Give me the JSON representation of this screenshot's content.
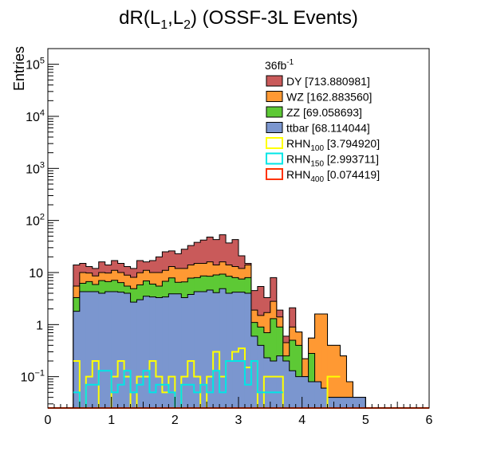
{
  "chart_data": {
    "type": "histogram",
    "title": "dR(L",
    "title_sub1": "1",
    "title_mid": ",L",
    "title_sub2": "2",
    "title_end": ") (OSSF-3L Events)",
    "ylabel": "Entries",
    "xlabel": "",
    "xlim": [
      0,
      6
    ],
    "ylim": [
      0.025,
      200000
    ],
    "yscale": "log",
    "bin_width": 0.1,
    "x_ticks": [
      "0",
      "1",
      "2",
      "3",
      "4",
      "5",
      "6"
    ],
    "y_ticks": [
      {
        "value": 0.1,
        "label": "10",
        "sup": "−1"
      },
      {
        "value": 1,
        "label": "1",
        "sup": ""
      },
      {
        "value": 10,
        "label": "10",
        "sup": ""
      },
      {
        "value": 100,
        "label": "10",
        "sup": "2"
      },
      {
        "value": 1000,
        "label": "10",
        "sup": "3"
      },
      {
        "value": 10000,
        "label": "10",
        "sup": "4"
      },
      {
        "value": 100000,
        "label": "10",
        "sup": "5"
      }
    ],
    "lumi_label": "36fb",
    "lumi_sup": "-1",
    "bin_edges_start": 0.4,
    "stack": [
      {
        "name": "ttbar",
        "label": "ttbar [68.114044]",
        "color": "#7b96cf",
        "cum": [
          1.8,
          4.3,
          4.3,
          4.3,
          4.0,
          4.3,
          4.3,
          4.2,
          4.0,
          2.7,
          3.0,
          3.5,
          3.4,
          3.3,
          3.4,
          3.9,
          3.9,
          3.3,
          3.8,
          4.3,
          4.3,
          4.6,
          4.1,
          4.9,
          4.0,
          4.2,
          4.2,
          4.0,
          0.6,
          0.4,
          0.23,
          0.2,
          0.25,
          0.2,
          0.13,
          0.1,
          0.1,
          0.08,
          0.08,
          0.06,
          0.04,
          0.04,
          0.04,
          0.04,
          0.04,
          0.04
        ]
      },
      {
        "name": "ZZ",
        "label": "ZZ [69.058693]",
        "color": "#5dc935",
        "cum": [
          3.3,
          6.2,
          6.7,
          5.9,
          7.0,
          6.7,
          7.1,
          6.4,
          5.5,
          4.9,
          5.8,
          6.9,
          6.0,
          5.5,
          6.8,
          7.9,
          6.5,
          6.6,
          7.8,
          8.0,
          8.6,
          8.5,
          9.0,
          9.3,
          8.5,
          8.0,
          7.5,
          8.0,
          1.1,
          0.9,
          0.7,
          1.3,
          0.9,
          0.25,
          0.5,
          0.4,
          0.1,
          0.28,
          0.08,
          0.06,
          0.04,
          0.04,
          0.04,
          0.04,
          0.04,
          0.04
        ]
      },
      {
        "name": "WZ",
        "label": "WZ [162.883560]",
        "color": "#ff9933",
        "cum": [
          5.5,
          10,
          9.8,
          8.6,
          10,
          9.8,
          11,
          10,
          8.9,
          8.1,
          9.9,
          11,
          10,
          10,
          11,
          13,
          12,
          12,
          14,
          15,
          15,
          16,
          14,
          16,
          14,
          13,
          12,
          14,
          1.9,
          1.5,
          1.7,
          2.8,
          1.4,
          0.45,
          0.9,
          0.72,
          0.22,
          0.55,
          1.6,
          1.6,
          0.4,
          0.4,
          0.25,
          0.08,
          0.04,
          0.04
        ]
      },
      {
        "name": "DY",
        "label": "DY [713.880981]",
        "color": "#c95a5a",
        "cum": [
          14,
          15,
          13,
          12,
          16,
          14,
          17,
          15,
          13,
          12,
          17,
          16,
          17,
          20,
          25,
          26,
          23,
          28,
          33,
          38,
          42,
          48,
          43,
          53,
          37,
          43,
          21,
          15,
          4.5,
          5.4,
          3.3,
          8.0,
          1.9,
          0.6,
          2.1,
          0.72,
          0.22,
          0.55,
          1.6,
          1.6,
          0.4,
          0.4,
          0.25,
          0.08,
          0.04,
          0.04
        ]
      }
    ],
    "lines": [
      {
        "name": "RHN100",
        "label": "RHN",
        "sub": "100",
        "value": " [3.794920]",
        "color": "#ffff00",
        "steps": [
          [
            0.4,
            0.5,
            0.2
          ],
          [
            0.5,
            0.6,
            0
          ],
          [
            0.6,
            0.7,
            0.1
          ],
          [
            0.7,
            0.8,
            0.2
          ],
          [
            0.8,
            1.0,
            0
          ],
          [
            1.0,
            1.1,
            0.1
          ],
          [
            1.1,
            1.2,
            0.2
          ],
          [
            1.2,
            1.3,
            0.1
          ],
          [
            1.3,
            1.4,
            0
          ],
          [
            1.4,
            1.5,
            0.1
          ],
          [
            1.5,
            1.6,
            0.1
          ],
          [
            1.6,
            1.7,
            0.2
          ],
          [
            1.7,
            1.8,
            0.1
          ],
          [
            1.8,
            1.9,
            0.05
          ],
          [
            1.9,
            2.0,
            0.1
          ],
          [
            2.0,
            2.1,
            0
          ],
          [
            2.1,
            2.2,
            0.1
          ],
          [
            2.2,
            2.3,
            0.2
          ],
          [
            2.3,
            2.4,
            0.1
          ],
          [
            2.4,
            2.5,
            0
          ],
          [
            2.5,
            2.6,
            0.1
          ],
          [
            2.6,
            2.7,
            0.3
          ],
          [
            2.7,
            2.8,
            0.1
          ],
          [
            2.8,
            2.9,
            0.2
          ],
          [
            2.9,
            3.0,
            0.3
          ],
          [
            3.0,
            3.1,
            0.35
          ],
          [
            3.1,
            3.2,
            0.15
          ],
          [
            3.2,
            3.3,
            0.2
          ],
          [
            3.3,
            3.4,
            0
          ],
          [
            3.4,
            3.5,
            0.1
          ],
          [
            3.5,
            3.6,
            0.1
          ],
          [
            3.6,
            3.7,
            0.1
          ],
          [
            3.7,
            4.4,
            0
          ],
          [
            4.4,
            4.5,
            0.1
          ],
          [
            4.5,
            4.6,
            0.1
          ]
        ]
      },
      {
        "name": "RHN150",
        "label": "RHN",
        "sub": "150",
        "value": " [2.993711]",
        "color": "#00e6e6",
        "steps": [
          [
            0.4,
            0.5,
            0.05
          ],
          [
            0.5,
            0.6,
            0
          ],
          [
            0.6,
            0.7,
            0.07
          ],
          [
            0.7,
            0.8,
            0.07
          ],
          [
            0.8,
            0.9,
            0.13
          ],
          [
            0.9,
            1.0,
            0.13
          ],
          [
            1.0,
            1.1,
            0.05
          ],
          [
            1.1,
            1.2,
            0.07
          ],
          [
            1.2,
            1.3,
            0.13
          ],
          [
            1.3,
            1.4,
            0.05
          ],
          [
            1.4,
            1.5,
            0.07
          ],
          [
            1.5,
            1.6,
            0.13
          ],
          [
            1.6,
            1.7,
            0.05
          ],
          [
            1.7,
            1.8,
            0.07
          ],
          [
            1.8,
            1.9,
            0.07
          ],
          [
            1.9,
            2.0,
            0.05
          ],
          [
            2.0,
            2.1,
            0
          ],
          [
            2.1,
            2.2,
            0.07
          ],
          [
            2.2,
            2.3,
            0.07
          ],
          [
            2.3,
            2.4,
            0.05
          ],
          [
            2.4,
            2.5,
            0.07
          ],
          [
            2.5,
            2.6,
            0.05
          ],
          [
            2.6,
            2.7,
            0.13
          ],
          [
            2.7,
            2.8,
            0.05
          ],
          [
            2.8,
            2.9,
            0.2
          ],
          [
            2.9,
            3.0,
            0.2
          ],
          [
            3.0,
            3.1,
            0.2
          ],
          [
            3.1,
            3.2,
            0.07
          ],
          [
            3.2,
            3.3,
            0.2
          ],
          [
            3.3,
            3.4,
            0.05
          ],
          [
            3.4,
            3.5,
            0.05
          ],
          [
            3.5,
            3.6,
            0.05
          ],
          [
            3.6,
            3.7,
            0.05
          ]
        ]
      },
      {
        "name": "RHN400",
        "label": "RHN",
        "sub": "400",
        "value": " [0.074419]",
        "color": "#ff3300",
        "steps": [
          [
            0,
            6,
            0.025
          ]
        ]
      }
    ],
    "legend_order": [
      "DY",
      "WZ",
      "ZZ",
      "ttbar",
      "RHN100",
      "RHN150",
      "RHN400"
    ]
  }
}
